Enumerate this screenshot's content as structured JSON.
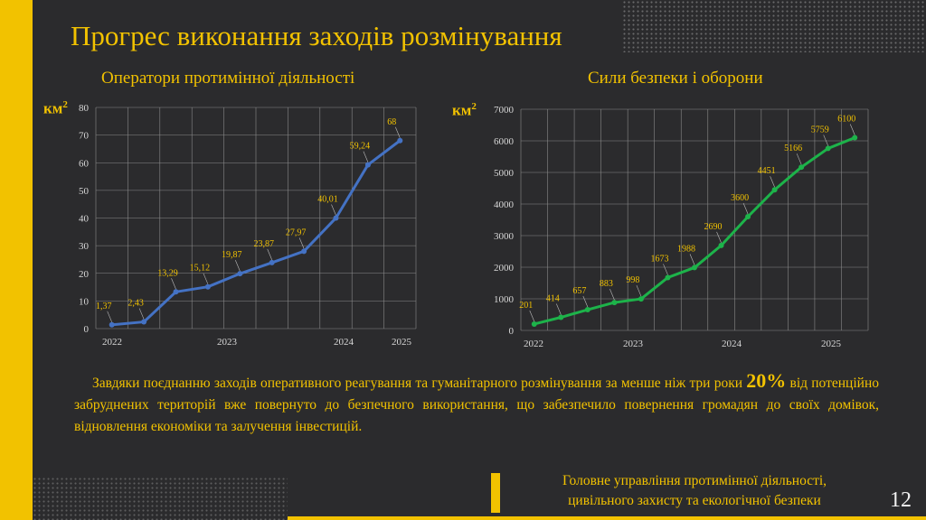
{
  "title": "Прогрес виконання заходів розмінування",
  "chart_data": [
    {
      "type": "line",
      "title": "Оператори протимінної діяльності",
      "ylabel": "км",
      "ylabel_sup": "2",
      "ylim": [
        0,
        80
      ],
      "yticks": [
        "0",
        "10",
        "20",
        "30",
        "40",
        "50",
        "60",
        "70",
        "80"
      ],
      "xtick_labels": [
        "2022",
        "2023",
        "2024",
        "2025"
      ],
      "values": [
        1.37,
        2.43,
        13.29,
        15.12,
        19.87,
        23.87,
        27.97,
        40.01,
        59.24,
        68
      ],
      "data_labels": [
        "1,37",
        "2,43",
        "13,29",
        "15,12",
        "19,87",
        "23,87",
        "27,97",
        "40,01",
        "59,24",
        "68"
      ],
      "color": "#4472c4",
      "grid": true
    },
    {
      "type": "line",
      "title": "Сили безпеки і оборони",
      "ylabel": "км",
      "ylabel_sup": "2",
      "ylim": [
        0,
        7000
      ],
      "yticks": [
        "0",
        "1000",
        "2000",
        "3000",
        "4000",
        "5000",
        "6000",
        "7000"
      ],
      "xtick_labels": [
        "2022",
        "2023",
        "2024",
        "2025"
      ],
      "values": [
        201,
        414,
        657,
        883,
        998,
        1673,
        1988,
        2690,
        3600,
        4451,
        5166,
        5759,
        6100
      ],
      "data_labels": [
        "201",
        "414",
        "657",
        "883",
        "998",
        "1673",
        "1988",
        "2690",
        "3600",
        "4451",
        "5166",
        "5759",
        "6100"
      ],
      "color": "#1db34a",
      "grid": true
    }
  ],
  "paragraph": {
    "before": "Завдяки поєднанню заходів оперативного реагування та гуманітарного розмінування за менше ніж три роки ",
    "highlight": "20%",
    "after": " від потенційно забруднених територій вже повернуто до безпечного використання, що забезпечило повернення громадян до своїх домівок, відновлення економіки та залучення інвестицій."
  },
  "org": {
    "line1": "Головне управління протимінної діяльності,",
    "line2": "цивільного захисту та екологічної безпеки"
  },
  "page_number": "12"
}
